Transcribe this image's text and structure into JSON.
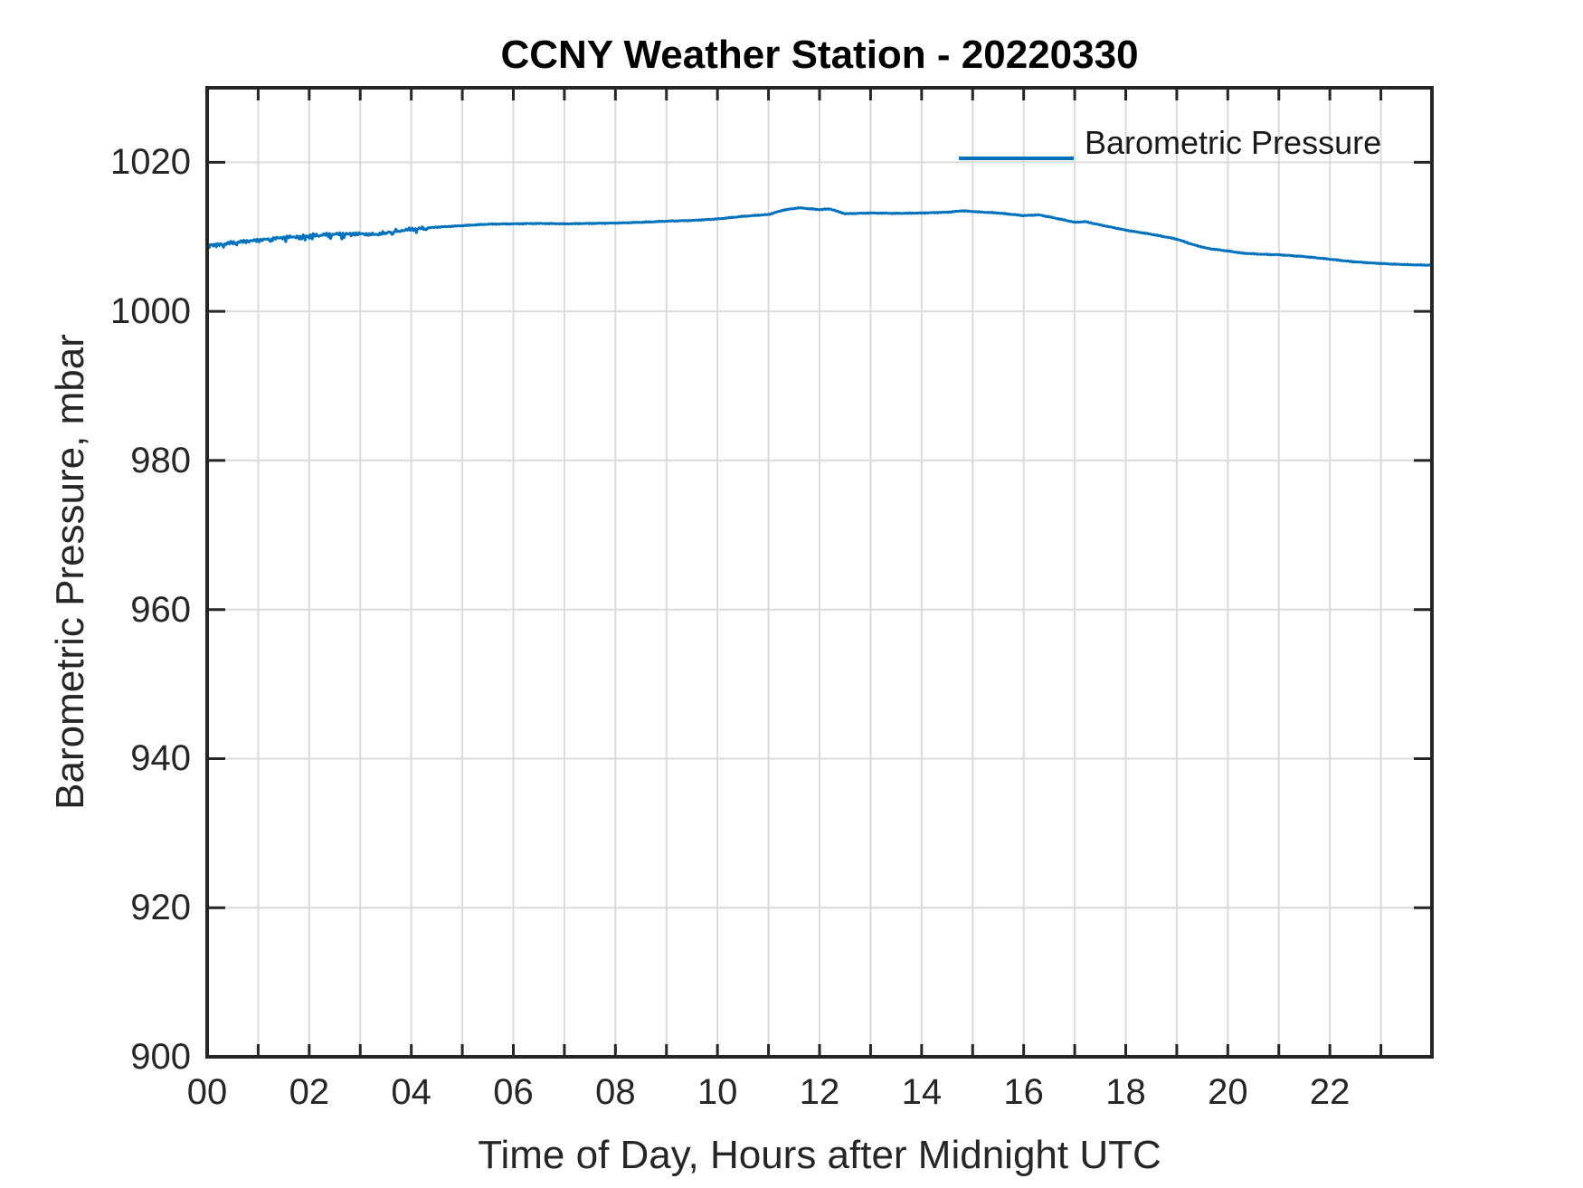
{
  "chart": {
    "title": "CCNY Weather Station - 20220330",
    "xlabel": "Time of Day, Hours after Midnight UTC",
    "ylabel": "Barometric Pressure, mbar",
    "legend_label": "Barometric Pressure"
  },
  "style": {
    "line_color": "#0072BD",
    "grid_color": "#dbdbdb",
    "axis_color": "#262626",
    "background": "#ffffff"
  },
  "chart_data": {
    "type": "line",
    "title": "CCNY Weather Station - 20220330",
    "xlabel": "Time of Day, Hours after Midnight UTC",
    "ylabel": "Barometric Pressure, mbar",
    "legend": [
      "Barometric Pressure"
    ],
    "legend_position": "inside-top-right, no box",
    "grid": true,
    "xlim": [
      0,
      24
    ],
    "ylim": [
      900,
      1030
    ],
    "x_grid_every_hours": 1,
    "xticks": {
      "positions": [
        0,
        2,
        4,
        6,
        8,
        10,
        12,
        14,
        16,
        18,
        20,
        22
      ],
      "labels": [
        "00",
        "02",
        "04",
        "06",
        "08",
        "10",
        "12",
        "14",
        "16",
        "18",
        "20",
        "22"
      ]
    },
    "yticks": [
      900,
      920,
      940,
      960,
      980,
      1000,
      1020
    ],
    "series": [
      {
        "name": "Barometric Pressure",
        "units": "mbar",
        "x_units": "hours after midnight UTC",
        "points": [
          [
            0.0,
            1009.0
          ],
          [
            0.2,
            1008.9
          ],
          [
            0.5,
            1009.25
          ],
          [
            1.0,
            1009.55
          ],
          [
            1.5,
            1009.9
          ],
          [
            2.0,
            1010.15
          ],
          [
            2.5,
            1010.35
          ],
          [
            3.0,
            1010.4
          ],
          [
            3.3,
            1010.3
          ],
          [
            3.6,
            1010.7
          ],
          [
            4.0,
            1011.0
          ],
          [
            4.5,
            1011.3
          ],
          [
            5.0,
            1011.5
          ],
          [
            5.5,
            1011.7
          ],
          [
            6.0,
            1011.75
          ],
          [
            6.5,
            1011.8
          ],
          [
            7.0,
            1011.75
          ],
          [
            7.5,
            1011.8
          ],
          [
            8.0,
            1011.85
          ],
          [
            8.5,
            1011.95
          ],
          [
            9.0,
            1012.1
          ],
          [
            9.5,
            1012.2
          ],
          [
            10.0,
            1012.4
          ],
          [
            10.5,
            1012.75
          ],
          [
            11.0,
            1013.0
          ],
          [
            11.3,
            1013.6
          ],
          [
            11.6,
            1013.9
          ],
          [
            12.0,
            1013.65
          ],
          [
            12.2,
            1013.75
          ],
          [
            12.5,
            1013.1
          ],
          [
            13.0,
            1013.2
          ],
          [
            13.5,
            1013.15
          ],
          [
            14.0,
            1013.2
          ],
          [
            14.5,
            1013.3
          ],
          [
            14.8,
            1013.5
          ],
          [
            15.1,
            1013.35
          ],
          [
            15.5,
            1013.2
          ],
          [
            16.0,
            1012.85
          ],
          [
            16.3,
            1012.95
          ],
          [
            16.7,
            1012.4
          ],
          [
            17.0,
            1011.95
          ],
          [
            17.2,
            1012.05
          ],
          [
            17.5,
            1011.6
          ],
          [
            18.0,
            1010.9
          ],
          [
            18.5,
            1010.35
          ],
          [
            19.0,
            1009.7
          ],
          [
            19.3,
            1009.0
          ],
          [
            19.6,
            1008.45
          ],
          [
            20.0,
            1008.1
          ],
          [
            20.3,
            1007.8
          ],
          [
            20.7,
            1007.65
          ],
          [
            21.0,
            1007.6
          ],
          [
            21.5,
            1007.35
          ],
          [
            22.0,
            1007.0
          ],
          [
            22.4,
            1006.7
          ],
          [
            22.8,
            1006.5
          ],
          [
            23.2,
            1006.35
          ],
          [
            23.6,
            1006.25
          ],
          [
            23.95,
            1006.2
          ],
          [
            24.0,
            1006.35
          ]
        ],
        "noise_zones": [
          {
            "to_hour": 4.3,
            "amplitude_mbar": 0.26
          },
          {
            "to_hour": 24,
            "amplitude_mbar": 0.07
          }
        ]
      }
    ]
  }
}
